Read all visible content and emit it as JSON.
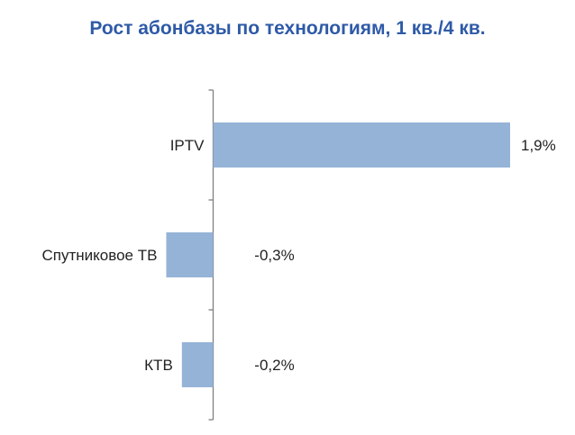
{
  "chart_data": {
    "type": "bar",
    "orientation": "horizontal",
    "title": "Рост абонбазы по технологиям, 1 кв./4 кв.",
    "categories": [
      "IPTV",
      "Спутниковое ТВ",
      "КТВ"
    ],
    "values": [
      1.9,
      -0.3,
      -0.2
    ],
    "data_labels": [
      "1,9%",
      "-0,3%",
      "-0,2%"
    ],
    "xlim": [
      -0.32,
      1.9
    ],
    "grid": false,
    "bar_color": "#95b3d7",
    "axis_color": "#808080",
    "title_color": "#2e5aa7"
  }
}
